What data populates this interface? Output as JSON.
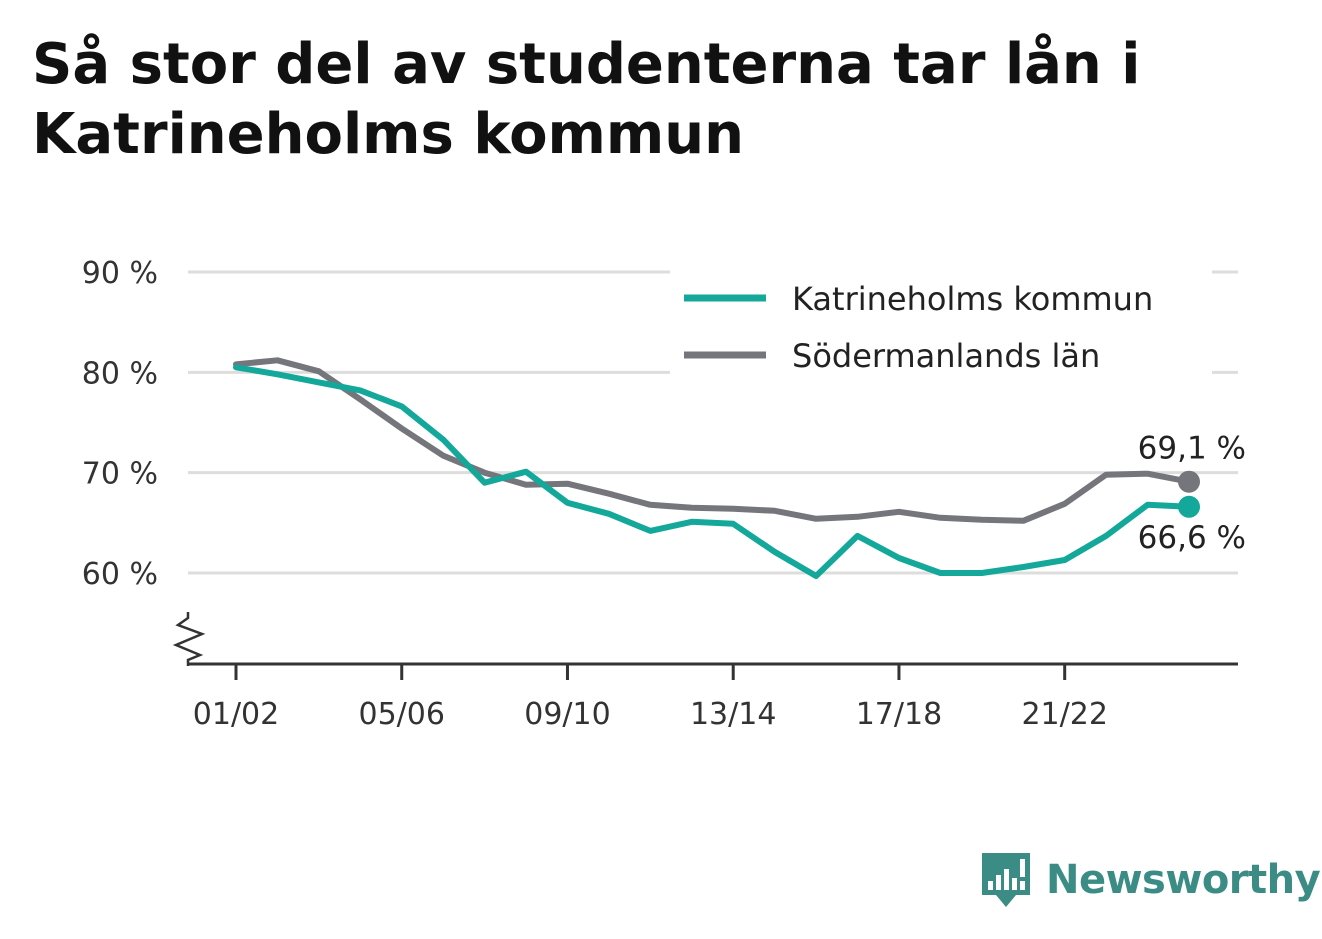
{
  "title": "Så stor del av studenterna tar lån i Katrineholms kommun",
  "brand": {
    "name": "Newsworthy",
    "icon": "newsworthy-logo-icon"
  },
  "colors": {
    "series1": "#14a89b",
    "series2": "#75757c",
    "grid": "#dddddd",
    "axis": "#333333",
    "brand": "#3a8c84"
  },
  "chart_data": {
    "type": "line",
    "x": [
      "01/02",
      "02/03",
      "03/04",
      "04/05",
      "05/06",
      "06/07",
      "07/08",
      "08/09",
      "09/10",
      "10/11",
      "11/12",
      "12/13",
      "13/14",
      "14/15",
      "15/16",
      "16/17",
      "17/18",
      "18/19",
      "19/20",
      "20/21",
      "21/22",
      "22/23",
      "23/24",
      "24/25"
    ],
    "x_tick_labels": [
      "01/02",
      "05/06",
      "09/10",
      "13/14",
      "17/18",
      "21/22"
    ],
    "y_tick_labels": [
      "90 %",
      "80 %",
      "70 %",
      "60 %"
    ],
    "y_ticks": [
      90,
      80,
      70,
      60
    ],
    "ylim": [
      51,
      90
    ],
    "y_axis_broken": true,
    "grid": true,
    "legend_position": "top-right",
    "series": [
      {
        "name": "Katrineholms kommun",
        "color": "#14a89b",
        "values": [
          80.5,
          79.8,
          79.0,
          78.2,
          76.6,
          73.3,
          69.0,
          70.1,
          67.0,
          65.9,
          64.2,
          65.1,
          64.9,
          62.1,
          59.7,
          63.7,
          61.5,
          60.0,
          60.0,
          60.6,
          61.3,
          63.7,
          66.8,
          66.6
        ],
        "end_label": "66,6 %"
      },
      {
        "name": "Södermanlands län",
        "color": "#75757c",
        "values": [
          80.8,
          81.2,
          80.1,
          77.3,
          74.4,
          71.7,
          70.0,
          68.8,
          68.9,
          67.9,
          66.8,
          66.5,
          66.4,
          66.2,
          65.4,
          65.6,
          66.1,
          65.5,
          65.3,
          65.2,
          66.9,
          69.8,
          69.9,
          69.1
        ],
        "end_label": "69,1 %"
      }
    ]
  }
}
